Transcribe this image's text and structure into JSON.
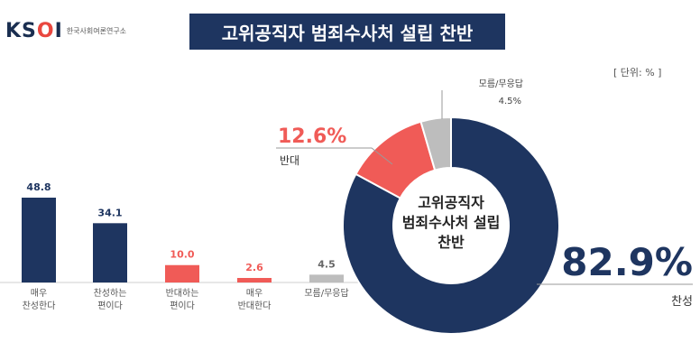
{
  "header": {
    "logo_text": "KSOI",
    "logo_sub": "한국사회여론연구소",
    "title": "고위공직자 범죄수사처 설립 찬반",
    "unit": "[ 단위: % ]"
  },
  "colors": {
    "navy": "#1e3560",
    "red": "#f05b57",
    "gray": "#bdbdbd"
  },
  "chart_data": [
    {
      "type": "bar",
      "categories": [
        "매우\n찬성한다",
        "찬성하는\n편이다",
        "반대하는\n편이다",
        "매우\n반대한다",
        "모름/무응답"
      ],
      "values": [
        48.8,
        34.1,
        10.0,
        2.6,
        4.5
      ],
      "value_labels": [
        "48.8",
        "34.1",
        "10.0",
        "2.6",
        "4.5"
      ],
      "bar_colors": [
        "#1e3560",
        "#1e3560",
        "#f05b57",
        "#f05b57",
        "#bdbdbd"
      ],
      "label_colors": [
        "#1e3560",
        "#1e3560",
        "#f05b57",
        "#f05b57",
        "#666666"
      ],
      "ylim": [
        0,
        60
      ]
    },
    {
      "type": "pie",
      "title": "고위공직자\n범죄수사처 설립\n찬반",
      "slices": [
        {
          "label": "찬성",
          "value": 82.9,
          "value_label": "82.9%",
          "color": "#1e3560"
        },
        {
          "label": "반대",
          "value": 12.6,
          "value_label": "12.6%",
          "color": "#f05b57"
        },
        {
          "label": "모름/무응답",
          "value": 4.5,
          "value_label": "4.5%",
          "color": "#bdbdbd"
        }
      ]
    }
  ]
}
